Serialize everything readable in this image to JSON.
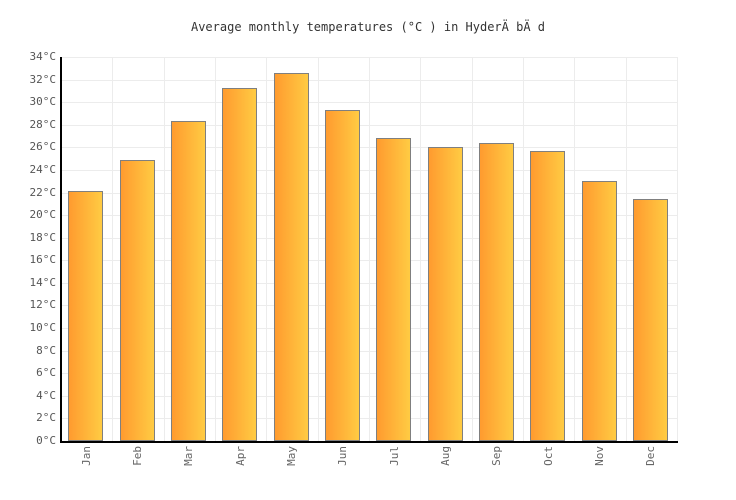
{
  "title": "Average monthly temperatures (°C ) in HyderÄ bÄ d",
  "colors": {
    "bar_gradient_left": "#FF9B2F",
    "bar_gradient_right": "#FFCB43",
    "bar_border": "#7F7F7F",
    "grid_line": "#ECECEC",
    "axis_line": "#000000",
    "title_text": "#333333",
    "y_tick_text": "#555555",
    "x_tick_text": "#666666",
    "background": "#FFFFFF"
  },
  "chart_data": {
    "type": "bar",
    "title": "Average monthly temperatures (°C ) in HyderÄ bÄ d",
    "categories": [
      "Jan",
      "Feb",
      "Mar",
      "Apr",
      "May",
      "Jun",
      "Jul",
      "Aug",
      "Sep",
      "Oct",
      "Nov",
      "Dec"
    ],
    "values": [
      22.1,
      24.9,
      28.3,
      31.3,
      32.6,
      29.3,
      26.8,
      26.0,
      26.4,
      25.7,
      23.0,
      21.4
    ],
    "unit": "°C",
    "xlabel": "",
    "ylabel": "",
    "ylim": [
      0,
      34
    ],
    "y_tick_step": 2,
    "y_tick_labels": [
      "0°C",
      "2°C",
      "4°C",
      "6°C",
      "8°C",
      "10°C",
      "12°C",
      "14°C",
      "16°C",
      "18°C",
      "20°C",
      "22°C",
      "24°C",
      "26°C",
      "28°C",
      "30°C",
      "32°C",
      "34°C"
    ],
    "grid": "both",
    "legend": "none",
    "x_label_rotation": -90
  }
}
